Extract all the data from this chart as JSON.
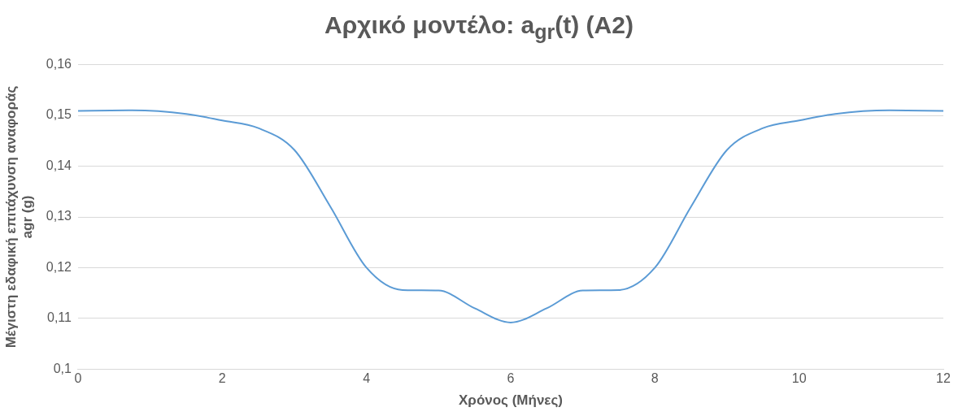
{
  "chart_data": {
    "type": "line",
    "title": "Αρχικό μοντέλο: a$_{gr}$(t) (A2)",
    "xlabel": "Χρόνος (Μήνες)",
    "ylabel": "Μέγιστη εδαφική επιτάχυνση αναφοράς agr (g)",
    "x": [
      0,
      0.75,
      1.5,
      2,
      2.5,
      3,
      3.5,
      4,
      4.5,
      5,
      5.5,
      6,
      6.5,
      7,
      7.5,
      8,
      8.5,
      9,
      9.5,
      10,
      10.5,
      11.25,
      12
    ],
    "series": [
      {
        "color": "#5b9bd5",
        "values": [
          0.1509,
          0.151,
          0.1503,
          0.149,
          0.1475,
          0.1432,
          0.132,
          0.12,
          0.1156,
          0.1155,
          0.112,
          0.1092,
          0.112,
          0.1155,
          0.1156,
          0.12,
          0.132,
          0.1432,
          0.1475,
          0.149,
          0.1503,
          0.151,
          0.1509
        ]
      }
    ],
    "xlim": [
      0,
      12
    ],
    "xticks": [
      0,
      2,
      4,
      6,
      8,
      10,
      12
    ],
    "ylim": [
      0.1,
      0.16
    ],
    "yticks": [
      {
        "value": 0.1,
        "label": "0,1"
      },
      {
        "value": 0.11,
        "label": "0,11"
      },
      {
        "value": 0.12,
        "label": "0,12"
      },
      {
        "value": 0.13,
        "label": "0,13"
      },
      {
        "value": 0.14,
        "label": "0,14"
      },
      {
        "value": 0.15,
        "label": "0,15"
      },
      {
        "value": 0.16,
        "label": "0,16"
      }
    ],
    "grid": "y",
    "legend": false,
    "marker": "none",
    "line_style": "solid"
  }
}
